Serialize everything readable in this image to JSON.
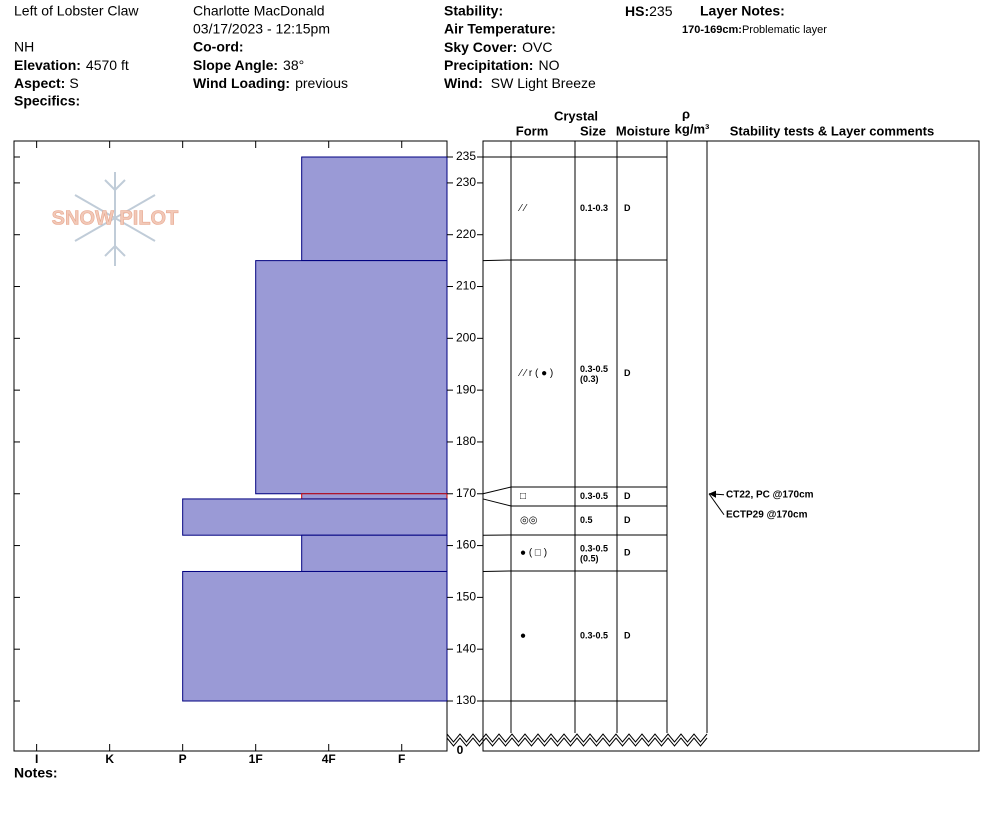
{
  "header": {
    "location": "Left of Lobster Claw",
    "state": "NH",
    "elevation": {
      "label": "Elevation:",
      "value": "4570 ft"
    },
    "aspect": {
      "label": "Aspect:",
      "value": "S"
    },
    "specifics": {
      "label": "Specifics:"
    },
    "observer": "Charlotte MacDonald",
    "datetime": "03/17/2023 - 12:15pm",
    "coord": {
      "label": "Co-ord:"
    },
    "slope_angle": {
      "label": "Slope Angle:",
      "value": "38°"
    },
    "wind_loading": {
      "label": "Wind Loading:",
      "value": "previous"
    },
    "stability": {
      "label": "Stability:"
    },
    "air_temperature": {
      "label": "Air Temperature:"
    },
    "sky_cover": {
      "label": "Sky Cover:",
      "value": "OVC"
    },
    "precipitation": {
      "label": "Precipitation:",
      "value": "NO"
    },
    "wind": {
      "label": "Wind:",
      "value": "SW Light Breeze"
    },
    "hs": {
      "label": "HS:",
      "value": "235"
    },
    "layer_notes": {
      "label": "Layer Notes:"
    },
    "layer_note": {
      "label": "170-169cm:",
      "value": "Problematic layer"
    }
  },
  "columns": {
    "crystal": "Crystal",
    "form": "Form",
    "size": "Size",
    "moisture": "Moisture",
    "rho": "ρ",
    "density": "kg/m³",
    "comments": "Stability tests & Layer comments"
  },
  "logo": "SNOW PILOT",
  "notes_label": "Notes:",
  "chart_data": {
    "type": "snow_profile",
    "ylim": [
      130,
      235
    ],
    "yticks": [
      130,
      140,
      150,
      160,
      170,
      180,
      190,
      200,
      210,
      220,
      230,
      235
    ],
    "axis_break_tick": 0,
    "xlim": [
      0.69,
      6.62
    ],
    "xticks": [
      {
        "value": 1,
        "label": "I"
      },
      {
        "value": 2,
        "label": "K"
      },
      {
        "value": 3,
        "label": "P"
      },
      {
        "value": 4,
        "label": "1F"
      },
      {
        "value": 5,
        "label": "4F"
      },
      {
        "value": 6,
        "label": "F"
      }
    ],
    "color": "#9a9ad6",
    "edge_color": "#000080",
    "layers": [
      {
        "top": 235,
        "bottom": 215,
        "hardness": 4.63,
        "form": "⁄ ⁄",
        "size": "0.1-0.3",
        "moisture": "D"
      },
      {
        "top": 215,
        "bottom": 170,
        "hardness": 4,
        "form": "⁄ ⁄ r ( ● )",
        "size": "0.3-0.5",
        "size2": "(0.3)",
        "moisture": "D"
      },
      {
        "top": 170,
        "bottom": 169,
        "hardness": 4.63,
        "form": "□",
        "size": "0.3-0.5",
        "moisture": "D",
        "edge_color": "#cc0000"
      },
      {
        "top": 169,
        "bottom": 162,
        "hardness": 3,
        "form": "◎◎",
        "size": "0.5",
        "moisture": "D"
      },
      {
        "top": 162,
        "bottom": 155,
        "hardness": 4.63,
        "form": "● ( □ )",
        "size": "0.3-0.5",
        "size2": "(0.5)",
        "moisture": "D"
      },
      {
        "top": 155,
        "bottom": 130,
        "hardness": 3,
        "form": "●",
        "size": "0.3-0.5",
        "moisture": "D"
      }
    ],
    "tests": [
      {
        "label": "CT22, PC @170cm",
        "depth": 170
      },
      {
        "label": "ECTP29 @170cm",
        "depth": 170
      }
    ]
  }
}
